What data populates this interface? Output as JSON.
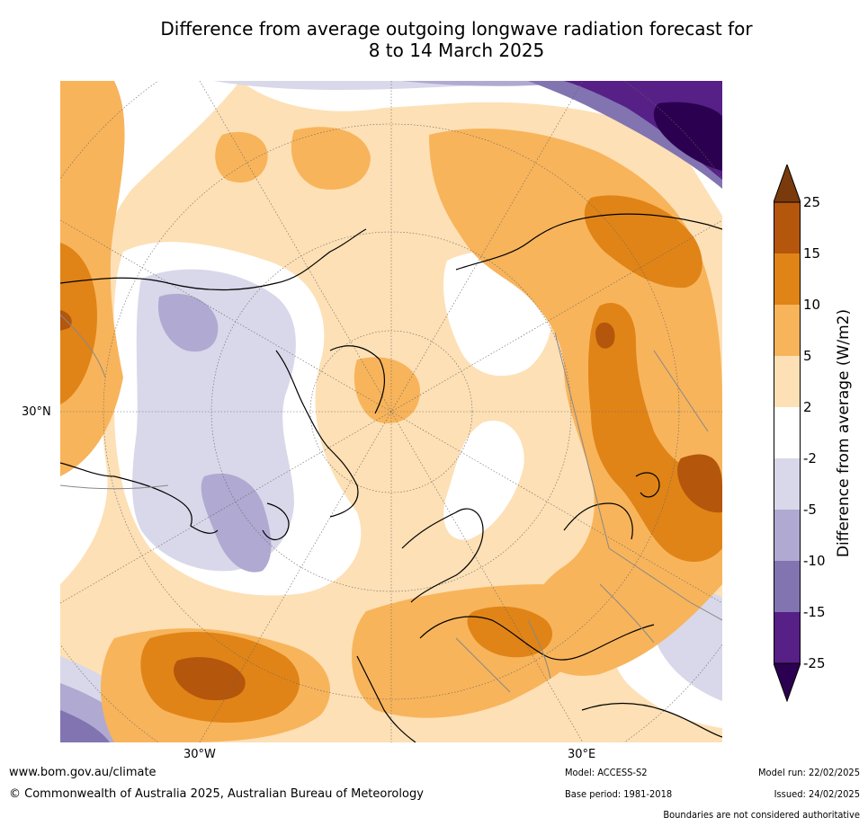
{
  "title": {
    "line1": "Difference from average outgoing longwave radiation forecast for",
    "line2": "8 to 14 March 2025"
  },
  "map": {
    "lon_labels": [
      "30°W",
      "30°E"
    ],
    "lat_labels": [
      "30°N"
    ]
  },
  "colorbar": {
    "label": "Difference from average (W/m2)",
    "ticks": [
      "25",
      "15",
      "10",
      "5",
      "2",
      "-2",
      "-5",
      "-10",
      "-15",
      "-25"
    ],
    "colors": {
      "gt25": "#7a3a0c",
      "15_25": "#b4560c",
      "10_15": "#e08417",
      "5_10": "#f8b45b",
      "2_5": "#fde0b5",
      "neutral": "#ffffff",
      "m2_m5": "#d8d8ea",
      "m5_m10": "#b0a9d1",
      "m10_m15": "#8274b0",
      "m15_m25": "#562087",
      "lt_m25": "#2c0050"
    }
  },
  "footer": {
    "website": "www.bom.gov.au/climate",
    "copyright": "© Commonwealth of Australia 2025, Australian Bureau of Meteorology",
    "model": "Model: ACCESS-S2",
    "base_period": "Base period: 1981-2018",
    "model_run": "Model run: 22/02/2025",
    "issued": "Issued: 24/02/2025",
    "disclaimer": "Boundaries are not considered authoritative"
  }
}
